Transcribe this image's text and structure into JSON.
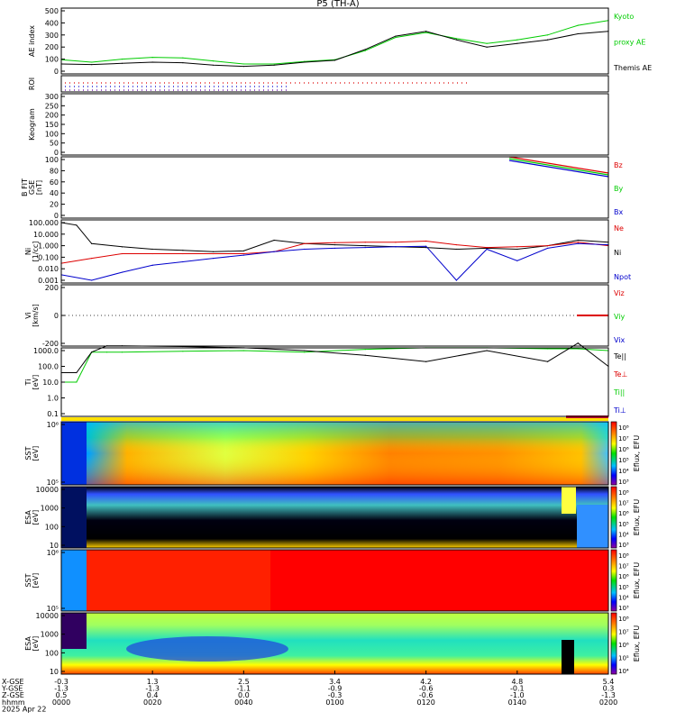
{
  "title": "P5 (TH-A)",
  "colors": {
    "black": "#000000",
    "red": "#dd0000",
    "green": "#00cc00",
    "blue": "#0000cc"
  },
  "panels": [
    {
      "id": "ae",
      "ylabel": [
        "AE index"
      ],
      "ticks": [
        "500",
        "400",
        "300",
        "200",
        "100",
        "0"
      ],
      "legend": [
        {
          "text": "Kyoto",
          "color": "#00cc00"
        },
        {
          "text": "proxy AE",
          "color": "#00cc00"
        },
        {
          "text": "Themis AE",
          "color": "#000000"
        }
      ]
    },
    {
      "id": "roi",
      "ylabel": [
        "ROI"
      ],
      "ticks": [],
      "legend": []
    },
    {
      "id": "keogram",
      "ylabel": [
        "Keogram"
      ],
      "ticks": [
        "300",
        "250",
        "200",
        "150",
        "100",
        "50",
        "0"
      ],
      "legend": []
    },
    {
      "id": "bfit",
      "ylabel": [
        "B FIT",
        "GSE",
        "[nT]"
      ],
      "ticks": [
        "100",
        "80",
        "60",
        "40",
        "20",
        "0"
      ],
      "legend": [
        {
          "text": "Bz",
          "color": "#dd0000"
        },
        {
          "text": "By",
          "color": "#00cc00"
        },
        {
          "text": "Bx",
          "color": "#0000cc"
        }
      ]
    },
    {
      "id": "ni",
      "ylabel": [
        "Ni",
        "[1/cc]"
      ],
      "ticks": [
        "100.000",
        "10.000",
        "1.000",
        "0.100",
        "0.010",
        "0.001"
      ],
      "legend": [
        {
          "text": "Ne",
          "color": "#dd0000"
        },
        {
          "text": "Ni",
          "color": "#000000"
        },
        {
          "text": "Npot",
          "color": "#0000cc"
        }
      ]
    },
    {
      "id": "vi",
      "ylabel": [
        "Vi",
        "[km/s]"
      ],
      "ticks": [
        "200",
        "0",
        "-200"
      ],
      "legend": [
        {
          "text": "Viz",
          "color": "#dd0000"
        },
        {
          "text": "Viy",
          "color": "#00cc00"
        },
        {
          "text": "Vix",
          "color": "#0000cc"
        }
      ]
    },
    {
      "id": "ti",
      "ylabel": [
        "Ti",
        "[eV]"
      ],
      "ticks": [
        "1000.0",
        "100.0",
        "10.0",
        "1.0",
        "0.1"
      ],
      "legend": [
        {
          "text": "Te||",
          "color": "#000000"
        },
        {
          "text": "Te⊥",
          "color": "#dd0000"
        },
        {
          "text": "Ti||",
          "color": "#00cc00"
        },
        {
          "text": "Ti⊥",
          "color": "#0000cc"
        }
      ]
    },
    {
      "id": "sst_e",
      "ylabel": [
        "SST",
        "[eV]"
      ],
      "ticks": [
        "10⁶",
        "10⁵"
      ],
      "cbar": [
        "10⁸",
        "10⁷",
        "10⁶",
        "10⁵",
        "10⁴",
        "10³"
      ],
      "cbarlabel": "Eflux, EFU",
      "legend": []
    },
    {
      "id": "esa_e",
      "ylabel": [
        "ESA",
        "[eV]"
      ],
      "ticks": [
        "10000",
        "1000",
        "100",
        "10"
      ],
      "cbar": [
        "10⁸",
        "10⁷",
        "10⁶",
        "10⁵",
        "10⁴",
        "10³"
      ],
      "cbarlabel": "Eflux, EFU",
      "legend": []
    },
    {
      "id": "sst_i",
      "ylabel": [
        "SST",
        "[eV]"
      ],
      "ticks": [
        "10⁶",
        "10⁵"
      ],
      "cbar": [
        "10⁸",
        "10⁷",
        "10⁶",
        "10⁵",
        "10⁴",
        "10³"
      ],
      "cbarlabel": "Eflux, EFU",
      "legend": []
    },
    {
      "id": "esa_i",
      "ylabel": [
        "ESA",
        "[eV]"
      ],
      "ticks": [
        "10000",
        "1000",
        "100",
        "10"
      ],
      "cbar": [
        "10⁸",
        "10⁷",
        "10⁶",
        "10⁵",
        "10⁴"
      ],
      "cbarlabel": "Eflux, EFU",
      "legend": []
    }
  ],
  "xaxis": {
    "row_labels": [
      "X-GSE",
      "Y-GSE",
      "Z-GSE",
      "hhmm",
      "2025 Apr 22"
    ],
    "columns": [
      [
        "-0.3",
        "-1.3",
        "0.5",
        "0000"
      ],
      [
        "1.3",
        "-1.3",
        "0.4",
        "0020"
      ],
      [
        "2.5",
        "-1.1",
        "0.0",
        "0040"
      ],
      [
        "3.4",
        "-0.9",
        "-0.3",
        "0100"
      ],
      [
        "4.2",
        "-0.6",
        "-0.6",
        "0120"
      ],
      [
        "4.8",
        "-0.1",
        "-1.0",
        "0140"
      ],
      [
        "5.4",
        "0.3",
        "-1.3",
        "0200"
      ]
    ]
  },
  "chart_data": {
    "type": "line",
    "title": "P5 (TH-A)",
    "x_unit": "hhmm, 2025 Apr 22",
    "x_range": [
      "0000",
      "0200"
    ],
    "series": [
      {
        "panel": "ae",
        "name": "Kyoto proxy AE",
        "x_min": [
          0,
          10,
          20,
          30,
          40,
          50,
          60,
          70,
          80,
          90,
          100,
          110,
          120,
          130,
          140,
          150,
          160,
          170,
          180
        ],
        "values": [
          95,
          75,
          100,
          115,
          110,
          85,
          60,
          60,
          80,
          95,
          170,
          280,
          320,
          270,
          230,
          260,
          300,
          380,
          420
        ]
      },
      {
        "panel": "ae",
        "name": "Themis AE",
        "x_min": [
          0,
          10,
          20,
          30,
          40,
          50,
          60,
          70,
          80,
          90,
          100,
          110,
          120,
          130,
          140,
          150,
          160,
          170,
          180
        ],
        "values": [
          60,
          55,
          65,
          75,
          70,
          50,
          40,
          50,
          75,
          90,
          180,
          290,
          330,
          260,
          200,
          230,
          260,
          310,
          330
        ]
      },
      {
        "panel": "ni",
        "name": "Ni",
        "x_min": [
          0,
          5,
          10,
          20,
          30,
          40,
          50,
          60,
          70,
          80,
          90,
          100,
          110,
          120,
          130,
          140,
          150,
          160,
          170,
          180
        ],
        "values": [
          100,
          60,
          1.5,
          0.8,
          0.5,
          0.4,
          0.3,
          0.35,
          3,
          1.5,
          1.2,
          1.0,
          0.8,
          0.7,
          0.5,
          0.6,
          0.5,
          1.0,
          3,
          2
        ]
      },
      {
        "panel": "ni",
        "name": "Ne",
        "x_min": [
          0,
          10,
          20,
          30,
          40,
          50,
          60,
          70,
          80,
          90,
          100,
          110,
          120,
          130,
          140,
          150,
          160,
          170,
          180
        ],
        "values": [
          0.03,
          0.08,
          0.2,
          0.2,
          0.2,
          0.2,
          0.2,
          0.3,
          1.5,
          1.8,
          2,
          2,
          2.5,
          1.2,
          0.7,
          0.8,
          1.0,
          2,
          1
        ]
      },
      {
        "panel": "ni",
        "name": "Npot",
        "x_min": [
          0,
          10,
          20,
          30,
          40,
          50,
          60,
          70,
          80,
          90,
          100,
          110,
          120,
          130,
          140,
          150,
          160,
          170,
          180
        ],
        "values": [
          0.003,
          0.001,
          0.005,
          0.02,
          0.04,
          0.08,
          0.15,
          0.3,
          0.5,
          0.6,
          0.7,
          0.8,
          0.9,
          0.001,
          0.5,
          0.05,
          0.6,
          1.5,
          1.2
        ]
      },
      {
        "panel": "ti",
        "name": "Ti||",
        "x_min": [
          0,
          5,
          10,
          15,
          20,
          40,
          60,
          80,
          100,
          120,
          140,
          160,
          170,
          180
        ],
        "values": [
          10,
          10,
          800,
          800,
          800,
          900,
          1000,
          800,
          1200,
          1500,
          1500,
          1300,
          1300,
          1000
        ]
      },
      {
        "panel": "ti",
        "name": "Te||",
        "x_min": [
          0,
          5,
          10,
          15,
          20,
          40,
          60,
          80,
          100,
          120,
          140,
          160,
          170,
          180
        ],
        "values": [
          40,
          40,
          800,
          2000,
          2000,
          1800,
          1500,
          1000,
          500,
          200,
          1000,
          200,
          3000,
          100
        ]
      }
    ]
  }
}
